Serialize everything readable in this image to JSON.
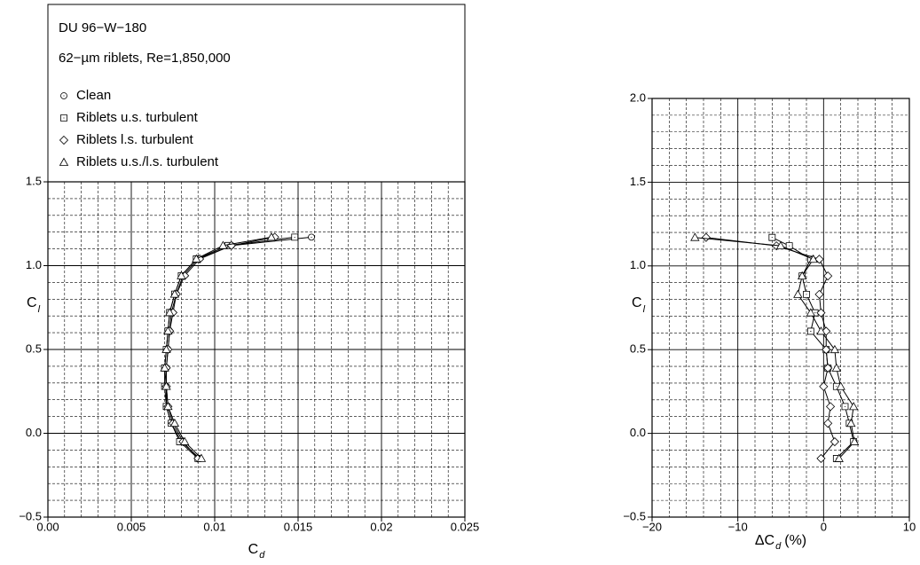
{
  "chart_data": [
    {
      "type": "scatter-line",
      "title": "DU 96−W−180",
      "subtitle": "62−µm riblets, Re=1,850,000",
      "xlabel": "C",
      "xlabel_sub": "d",
      "ylabel": "C",
      "ylabel_sub": "l",
      "xlim": [
        0,
        0.025
      ],
      "ylim": [
        -0.5,
        1.5
      ],
      "xticks": [
        {
          "value": 0,
          "label": "0.00"
        },
        0.005,
        0.01,
        0.015,
        0.02,
        0.025
      ],
      "yticks": [
        {
          "value": -0.5,
          "label": "−0.5"
        },
        {
          "value": 0,
          "label": "0.0"
        },
        0.5,
        {
          "value": 1,
          "label": "1.0"
        },
        1.5
      ],
      "grid": true,
      "minor_grid": 5,
      "legend": "top-left",
      "series": [
        {
          "name": "Clean",
          "marker": "circle",
          "color": "#000000",
          "x": [
            0.0091,
            0.008,
            0.0074,
            0.0071,
            0.0071,
            0.0071,
            0.0072,
            0.0073,
            0.0074,
            0.0077,
            0.0081,
            0.009,
            0.011,
            0.0158
          ],
          "y": [
            -0.15,
            -0.05,
            0.06,
            0.16,
            0.28,
            0.39,
            0.5,
            0.61,
            0.72,
            0.83,
            0.94,
            1.04,
            1.12,
            1.17
          ]
        },
        {
          "name": "Riblets u.s. turbulent",
          "marker": "square",
          "color": "#000000",
          "x": [
            0.009,
            0.0079,
            0.0074,
            0.0071,
            0.007,
            0.007,
            0.0071,
            0.0072,
            0.0073,
            0.0076,
            0.008,
            0.0089,
            0.0108,
            0.0148
          ],
          "y": [
            -0.15,
            -0.05,
            0.06,
            0.16,
            0.28,
            0.39,
            0.5,
            0.61,
            0.72,
            0.83,
            0.94,
            1.04,
            1.12,
            1.17
          ]
        },
        {
          "name": "Riblets l.s. turbulent",
          "marker": "diamond",
          "color": "#000000",
          "x": [
            0.009,
            0.0081,
            0.0075,
            0.0072,
            0.0071,
            0.0071,
            0.0072,
            0.0073,
            0.0075,
            0.0077,
            0.0082,
            0.0091,
            0.011,
            0.0136
          ],
          "y": [
            -0.15,
            -0.05,
            0.06,
            0.16,
            0.28,
            0.39,
            0.5,
            0.61,
            0.72,
            0.83,
            0.94,
            1.04,
            1.12,
            1.17
          ]
        },
        {
          "name": "Riblets u.s./l.s. turbulent",
          "marker": "triangle",
          "color": "#000000",
          "x": [
            0.0092,
            0.0082,
            0.0076,
            0.0072,
            0.0071,
            0.007,
            0.0071,
            0.0072,
            0.0073,
            0.0076,
            0.008,
            0.0089,
            0.0105,
            0.0134
          ],
          "y": [
            -0.15,
            -0.05,
            0.06,
            0.16,
            0.28,
            0.39,
            0.5,
            0.61,
            0.72,
            0.83,
            0.94,
            1.04,
            1.12,
            1.17
          ]
        }
      ]
    },
    {
      "type": "scatter-line",
      "xlabel": "ΔC",
      "xlabel_sub": "d",
      "xlabel_unit": "(%)",
      "ylabel": "C",
      "ylabel_sub": "l",
      "xlim": [
        -20,
        10
      ],
      "ylim": [
        -0.5,
        2
      ],
      "xticks": [
        {
          "value": -20,
          "label": "−20"
        },
        {
          "value": -10,
          "label": "−10"
        },
        0,
        10
      ],
      "yticks": [
        {
          "value": -0.5,
          "label": "−0.5"
        },
        {
          "value": 0,
          "label": "0.0"
        },
        0.5,
        {
          "value": 1,
          "label": "1.0"
        },
        1.5,
        {
          "value": 2,
          "label": "2.0"
        }
      ],
      "grid": true,
      "minor_grid": 5,
      "series": [
        {
          "marker": "square",
          "color": "#000000",
          "x": [
            1.5,
            3.5,
            3.0,
            2.5,
            1.5,
            0.5,
            0.3,
            -1.5,
            -1.0,
            -2.0,
            -2.5,
            -1.5,
            -4,
            -6
          ],
          "y": [
            -0.15,
            -0.05,
            0.06,
            0.16,
            0.28,
            0.39,
            0.5,
            0.61,
            0.72,
            0.83,
            0.94,
            1.04,
            1.12,
            1.17
          ]
        },
        {
          "marker": "diamond",
          "color": "#000000",
          "x": [
            -0.3,
            1.3,
            0.5,
            0.8,
            0,
            0.5,
            0.3,
            0.3,
            -0.3,
            -0.5,
            0.5,
            -0.5,
            -5.5,
            -13.7
          ],
          "y": [
            -0.15,
            -0.05,
            0.06,
            0.16,
            0.28,
            0.39,
            0.5,
            0.61,
            0.72,
            0.83,
            0.94,
            1.04,
            1.12,
            1.17
          ]
        },
        {
          "marker": "triangle",
          "color": "#000000",
          "x": [
            1.8,
            3.6,
            3.2,
            3.5,
            2.0,
            1.5,
            1.3,
            -0.3,
            -1.5,
            -3.0,
            -2.5,
            -1.2,
            -5,
            -15
          ],
          "y": [
            -0.15,
            -0.05,
            0.06,
            0.16,
            0.28,
            0.39,
            0.5,
            0.61,
            0.72,
            0.83,
            0.94,
            1.04,
            1.12,
            1.17
          ]
        }
      ]
    }
  ]
}
